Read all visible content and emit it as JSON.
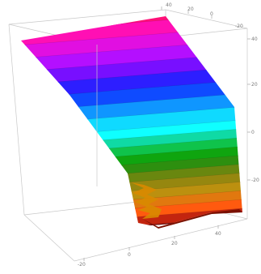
{
  "chart_data": {
    "type": "surface3d",
    "title": "",
    "xlabel": "",
    "ylabel": "",
    "zlabel": "",
    "box": true,
    "colormap": [
      "#e8003a",
      "#ff0088",
      "#e000e0",
      "#8000ff",
      "#0018ff",
      "#00a8ff",
      "#00ffff",
      "#00c040",
      "#008000",
      "#40a000",
      "#808000",
      "#a08000",
      "#ff8000",
      "#ff4000",
      "#b01000",
      "#500000"
    ],
    "bands": [
      {
        "z": 45,
        "color": "#e8003a"
      },
      {
        "z": 43,
        "color": "#ff0070"
      },
      {
        "z": 40,
        "color": "#ff00b0"
      },
      {
        "z": 37,
        "color": "#e000e0"
      },
      {
        "z": 34,
        "color": "#b000ff"
      },
      {
        "z": 31,
        "color": "#7000ff"
      },
      {
        "z": 28,
        "color": "#2010ff"
      },
      {
        "z": 25,
        "color": "#0040ff"
      },
      {
        "z": 22,
        "color": "#0090ff"
      },
      {
        "z": 19,
        "color": "#00d8ff"
      },
      {
        "z": 16,
        "color": "#00ffff"
      },
      {
        "z": 14,
        "color": "#00d8a0"
      },
      {
        "z": 12,
        "color": "#00c040"
      },
      {
        "z": 10,
        "color": "#00a000"
      },
      {
        "z": 8,
        "color": "#208800"
      },
      {
        "z": 6,
        "color": "#608000"
      },
      {
        "z": 4,
        "color": "#908000"
      },
      {
        "z": 2,
        "color": "#b88a00"
      },
      {
        "z": 0,
        "color": "#e07000"
      },
      {
        "z": -2,
        "color": "#ff5000"
      },
      {
        "z": -4,
        "color": "#c01800"
      },
      {
        "z": -6,
        "color": "#600000"
      }
    ],
    "ticks": {
      "top": [
        "40",
        "20",
        "0"
      ],
      "right_top": [
        "-20"
      ],
      "right": [
        "-20",
        "0",
        "20",
        "40"
      ],
      "bottom": [
        "-20",
        "0",
        "20",
        "40"
      ]
    }
  }
}
